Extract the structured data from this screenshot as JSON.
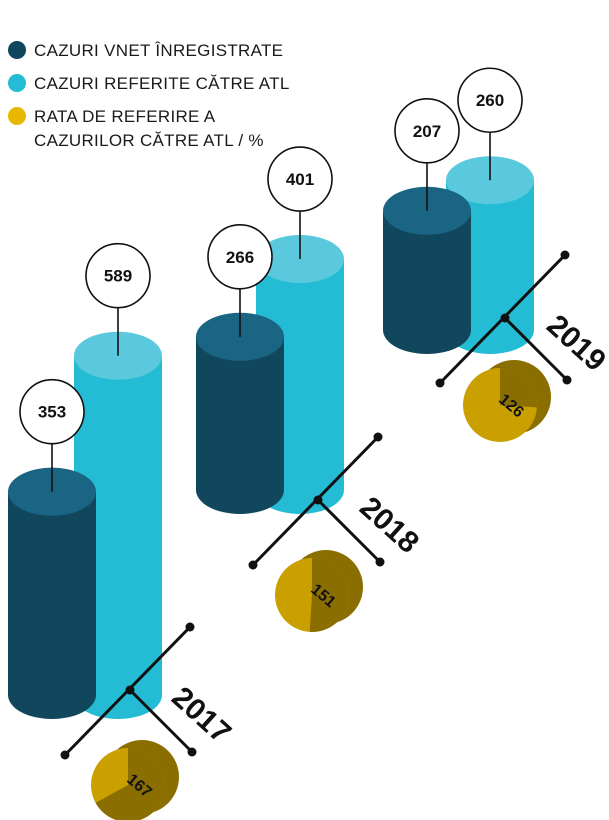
{
  "legend": [
    {
      "label": "CAZURI VNET ÎNREGISTRATE",
      "color": "#11475c"
    },
    {
      "label": "CAZURI REFERITE CĂTRE ATL",
      "color": "#24bcd4"
    },
    {
      "label_lines": [
        "RATA DE REFERIRE A",
        "CAZURILOR CĂTRE ATL / %"
      ],
      "color": "#e8b800"
    }
  ],
  "chart_data": {
    "type": "bar",
    "categories": [
      "2017",
      "2018",
      "2019"
    ],
    "series": [
      {
        "name": "CAZURI VNET ÎNREGISTRATE",
        "values": [
          353,
          266,
          207
        ],
        "color": "#11475c"
      },
      {
        "name": "CAZURI REFERITE CĂTRE ATL",
        "values": [
          589,
          401,
          260
        ],
        "color": "#24bcd4"
      },
      {
        "name": "RATA DE REFERIRE A CAZURILOR CĂTRE ATL / %",
        "values": [
          167,
          151,
          126
        ],
        "color": "#c9a000"
      }
    ],
    "value_labels": {
      "vnet": [
        "353",
        "266",
        "207"
      ],
      "atl": [
        "589",
        "401",
        "260"
      ],
      "rate": [
        "167",
        "151",
        "126"
      ]
    }
  }
}
